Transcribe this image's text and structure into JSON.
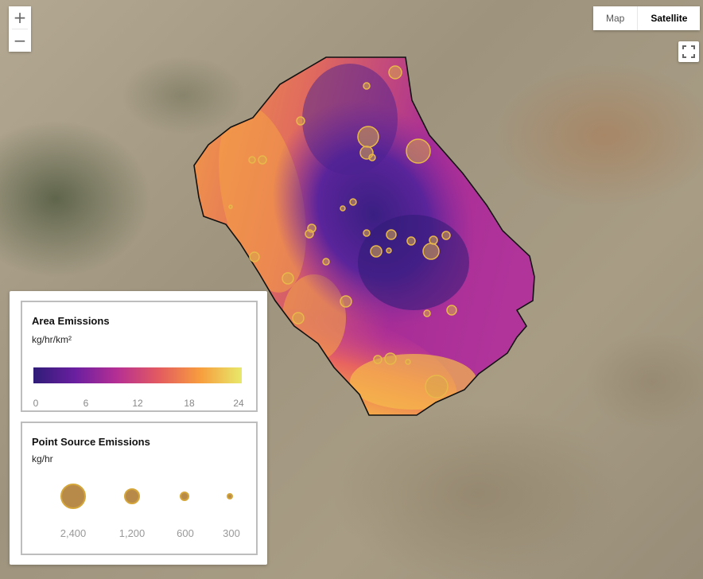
{
  "map": {
    "zoom_in_label": "+",
    "zoom_out_label": "−",
    "map_type": {
      "map_label": "Map",
      "satellite_label": "Satellite",
      "selected": "Satellite"
    },
    "fullscreen_icon": "fullscreen-icon"
  },
  "legend": {
    "area": {
      "title": "Area Emissions",
      "unit": "kg/hr/km²",
      "ticks": [
        "0",
        "6",
        "12",
        "18",
        "24"
      ],
      "colors": [
        "#2f1c77",
        "#6a1fa0",
        "#b52f94",
        "#e35a60",
        "#f79d3e",
        "#e7e96b"
      ]
    },
    "point": {
      "title": "Point Source Emissions",
      "unit": "kg/hr",
      "items": [
        {
          "value": 2400,
          "label": "2,400"
        },
        {
          "value": 1200,
          "label": "1,200"
        },
        {
          "value": 600,
          "label": "600"
        },
        {
          "value": 300,
          "label": "300"
        }
      ],
      "fill_color": "#b88a4a",
      "stroke_color": "#d4a63a"
    }
  }
}
